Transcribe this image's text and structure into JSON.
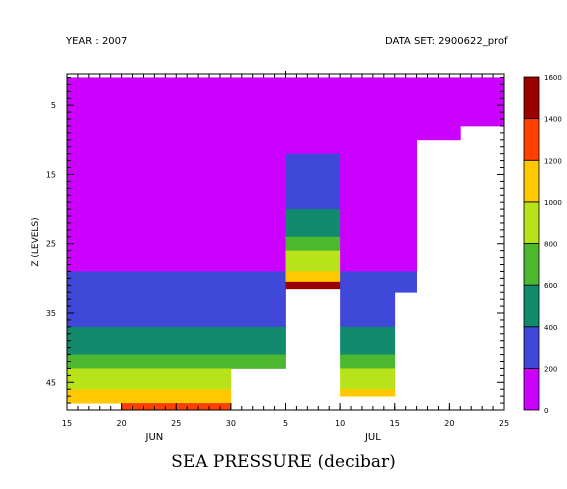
{
  "header": {
    "year_label": "YEAR : 2007",
    "dataset_label": "DATA SET: 2900622_prof"
  },
  "chart_data": {
    "type": "heatmap",
    "title": "",
    "xlabel": "SEA PRESSURE (decibar)",
    "ylabel": "Z (LEVELS)",
    "x_axis": {
      "range": [
        "2007-06-15",
        "2007-07-25"
      ],
      "ticks": [
        {
          "date": "2007-06-15",
          "label": "15"
        },
        {
          "date": "2007-06-20",
          "label": "20"
        },
        {
          "date": "2007-06-25",
          "label": "25"
        },
        {
          "date": "2007-06-30",
          "label": "30"
        },
        {
          "date": "2007-07-05",
          "label": "5"
        },
        {
          "date": "2007-07-10",
          "label": "10"
        },
        {
          "date": "2007-07-15",
          "label": "15"
        },
        {
          "date": "2007-07-20",
          "label": "20"
        },
        {
          "date": "2007-07-25",
          "label": "25"
        }
      ],
      "month_labels": [
        {
          "label": "JUN",
          "date": "2007-06-23"
        },
        {
          "label": "JUL",
          "date": "2007-07-13"
        }
      ]
    },
    "y_axis": {
      "range": [
        49,
        0.5
      ],
      "ticks": [
        5,
        15,
        25,
        35,
        45
      ]
    },
    "colorbar": {
      "levels": [
        0,
        200,
        400,
        600,
        800,
        1000,
        1200,
        1400,
        1600
      ],
      "labels": [
        "0",
        "200",
        "400",
        "600",
        "800",
        "1000",
        "1200",
        "1400",
        "1600"
      ],
      "colors": [
        "#cc00ff",
        "#3f48d8",
        "#128a6e",
        "#4cb82f",
        "#b8e21a",
        "#ffc800",
        "#ff4000",
        "#9a0000"
      ]
    },
    "profiles": [
      {
        "start": "2007-06-15",
        "end": "2007-06-20",
        "cells": [
          [
            1,
            29,
            0
          ],
          [
            29,
            37,
            1
          ],
          [
            37,
            41,
            2
          ],
          [
            41,
            43,
            3
          ],
          [
            43,
            46,
            4
          ],
          [
            46,
            48,
            5
          ]
        ]
      },
      {
        "start": "2007-06-20",
        "end": "2007-06-30",
        "cells": [
          [
            1,
            29,
            0
          ],
          [
            29,
            37,
            1
          ],
          [
            37,
            41,
            2
          ],
          [
            41,
            43,
            3
          ],
          [
            43,
            46,
            4
          ],
          [
            46,
            48,
            5
          ],
          [
            48,
            49,
            6
          ]
        ]
      },
      {
        "start": "2007-06-30",
        "end": "2007-07-05",
        "cells": [
          [
            1,
            29,
            0
          ],
          [
            29,
            37,
            1
          ],
          [
            37,
            41,
            2
          ],
          [
            41,
            43,
            3
          ]
        ]
      },
      {
        "start": "2007-07-05",
        "end": "2007-07-10",
        "cells": [
          [
            1,
            12,
            0
          ],
          [
            12,
            20,
            1
          ],
          [
            20,
            24,
            2
          ],
          [
            24,
            26,
            3
          ],
          [
            26,
            29,
            4
          ],
          [
            29,
            30.5,
            5
          ],
          [
            30.5,
            31.5,
            7
          ]
        ]
      },
      {
        "start": "2007-07-10",
        "end": "2007-07-15",
        "cells": [
          [
            1,
            29,
            0
          ],
          [
            29,
            37,
            1
          ],
          [
            37,
            41,
            2
          ],
          [
            41,
            43,
            3
          ],
          [
            43,
            46,
            4
          ],
          [
            46,
            47,
            5
          ]
        ]
      },
      {
        "start": "2007-07-15",
        "end": "2007-07-17",
        "cells": [
          [
            1,
            29,
            0
          ],
          [
            29,
            32,
            1
          ]
        ]
      },
      {
        "start": "2007-07-17",
        "end": "2007-07-21",
        "cells": [
          [
            1,
            10,
            0
          ]
        ]
      },
      {
        "start": "2007-07-21",
        "end": "2007-07-25",
        "cells": [
          [
            1,
            8,
            0
          ]
        ]
      }
    ]
  }
}
